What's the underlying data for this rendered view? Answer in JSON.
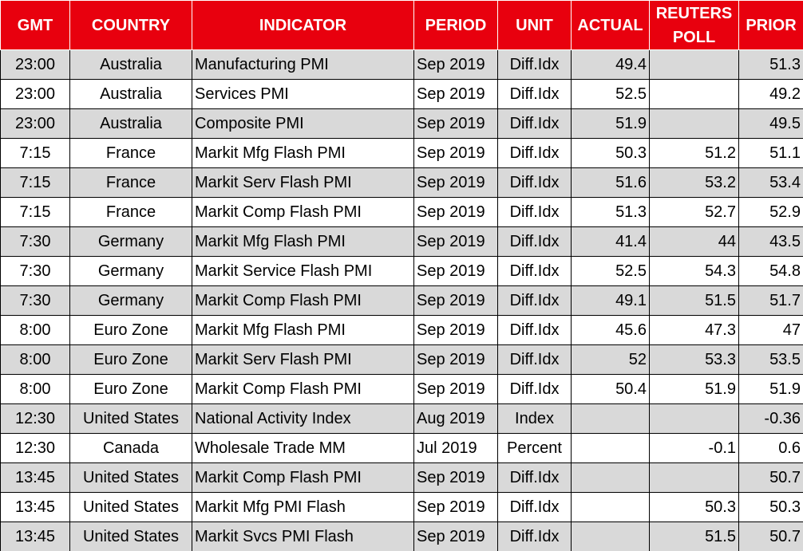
{
  "table": {
    "columns": [
      "GMT",
      "COUNTRY",
      "INDICATOR",
      "PERIOD",
      "UNIT",
      "ACTUAL",
      "REUTERS POLL",
      "PRIOR"
    ],
    "rows": [
      [
        "23:00",
        "Australia",
        "Manufacturing PMI",
        "Sep 2019",
        "Diff.Idx",
        "49.4",
        null,
        "51.3"
      ],
      [
        "23:00",
        "Australia",
        "Services PMI",
        "Sep 2019",
        "Diff.Idx",
        "52.5",
        null,
        "49.2"
      ],
      [
        "23:00",
        "Australia",
        "Composite PMI",
        "Sep 2019",
        "Diff.Idx",
        "51.9",
        null,
        "49.5"
      ],
      [
        "7:15",
        "France",
        "Markit Mfg Flash PMI",
        "Sep 2019",
        "Diff.Idx",
        "50.3",
        "51.2",
        "51.1"
      ],
      [
        "7:15",
        "France",
        "Markit Serv Flash PMI",
        "Sep 2019",
        "Diff.Idx",
        "51.6",
        "53.2",
        "53.4"
      ],
      [
        "7:15",
        "France",
        "Markit Comp Flash PMI",
        "Sep 2019",
        "Diff.Idx",
        "51.3",
        "52.7",
        "52.9"
      ],
      [
        "7:30",
        "Germany",
        "Markit Mfg Flash PMI",
        "Sep 2019",
        "Diff.Idx",
        "41.4",
        "44",
        "43.5"
      ],
      [
        "7:30",
        "Germany",
        "Markit Service Flash PMI",
        "Sep 2019",
        "Diff.Idx",
        "52.5",
        "54.3",
        "54.8"
      ],
      [
        "7:30",
        "Germany",
        "Markit Comp Flash PMI",
        "Sep 2019",
        "Diff.Idx",
        "49.1",
        "51.5",
        "51.7"
      ],
      [
        "8:00",
        "Euro Zone",
        "Markit Mfg Flash PMI",
        "Sep 2019",
        "Diff.Idx",
        "45.6",
        "47.3",
        "47"
      ],
      [
        "8:00",
        "Euro Zone",
        "Markit Serv Flash PMI",
        "Sep 2019",
        "Diff.Idx",
        "52",
        "53.3",
        "53.5"
      ],
      [
        "8:00",
        "Euro Zone",
        "Markit Comp Flash PMI",
        "Sep 2019",
        "Diff.Idx",
        "50.4",
        "51.9",
        "51.9"
      ],
      [
        "12:30",
        "United States",
        "National Activity Index",
        "Aug 2019",
        "Index",
        null,
        null,
        "-0.36"
      ],
      [
        "12:30",
        "Canada",
        "Wholesale Trade MM",
        "Jul 2019",
        "Percent",
        null,
        "-0.1",
        "0.6"
      ],
      [
        "13:45",
        "United States",
        "Markit Comp Flash PMI",
        "Sep 2019",
        "Diff.Idx",
        null,
        null,
        "50.7"
      ],
      [
        "13:45",
        "United States",
        "Markit Mfg PMI Flash",
        "Sep 2019",
        "Diff.Idx",
        null,
        "50.3",
        "50.3"
      ],
      [
        "13:45",
        "United States",
        "Markit Svcs PMI Flash",
        "Sep 2019",
        "Diff.Idx",
        null,
        "51.5",
        "50.7"
      ]
    ]
  }
}
